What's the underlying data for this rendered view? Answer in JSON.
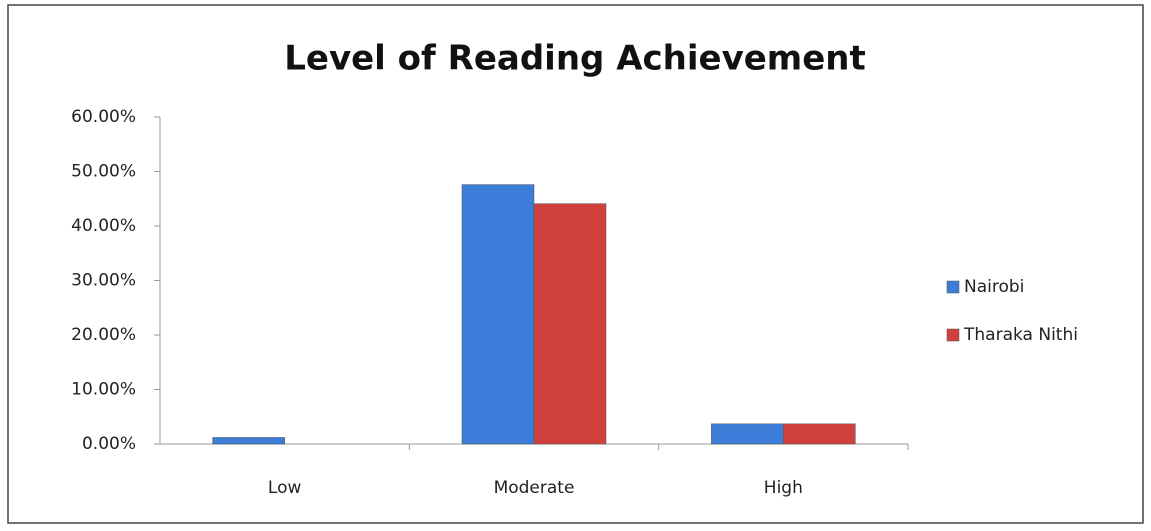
{
  "chart_data": {
    "type": "bar",
    "title": "Level of Reading Achievement",
    "categories": [
      "Low",
      "Moderate",
      "High"
    ],
    "series": [
      {
        "name": "Nairobi",
        "color": "#3b7dd8",
        "values": [
          1.2,
          47.6,
          3.7
        ]
      },
      {
        "name": "Tharaka Nithi",
        "color": "#d0403c",
        "values": [
          0,
          44.1,
          3.7
        ]
      }
    ],
    "ylim": [
      0,
      60
    ],
    "yticks": [
      {
        "value": 0,
        "label": "0.00%"
      },
      {
        "value": 10,
        "label": "10.00%"
      },
      {
        "value": 20,
        "label": "20.00%"
      },
      {
        "value": 30,
        "label": "30.00%"
      },
      {
        "value": 40,
        "label": "40.00%"
      },
      {
        "value": 50,
        "label": "50.00%"
      },
      {
        "value": 60,
        "label": "60.00%"
      }
    ],
    "grid": false,
    "legend": "right"
  }
}
